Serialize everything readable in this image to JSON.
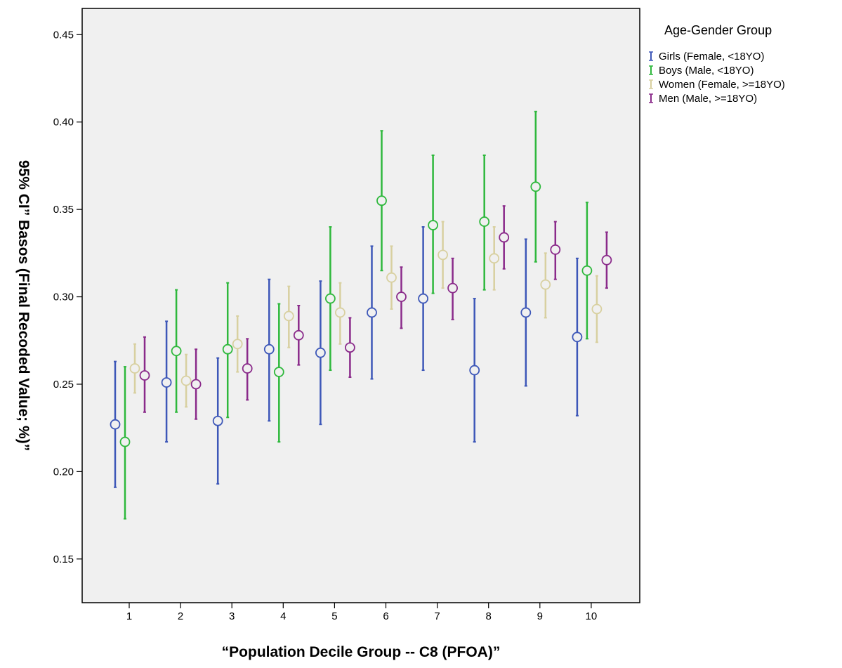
{
  "chart_data": {
    "type": "error-bar",
    "xlabel": "“Population Decile Group --  C8 (PFOA)”",
    "ylabel": "95% CI” Basos (Final Recoded Value; %)”",
    "ylim": [
      0.125,
      0.465
    ],
    "yticks": [
      "0.15",
      "0.20",
      "0.25",
      "0.30",
      "0.35",
      "0.40",
      "0.45"
    ],
    "ytick_values": [
      0.15,
      0.2,
      0.25,
      0.3,
      0.35,
      0.4,
      0.45
    ],
    "categories": [
      "1",
      "2",
      "3",
      "4",
      "5",
      "6",
      "7",
      "8",
      "9",
      "10"
    ],
    "legend": {
      "title": "Age-Gender Group",
      "position": "right"
    },
    "grid": false,
    "plot_background": "#f0f0f0",
    "series": [
      {
        "name": "Girls (Female, <18YO)",
        "color": "#3d57b8",
        "mean": [
          0.227,
          0.251,
          0.229,
          0.27,
          0.268,
          0.291,
          0.299,
          0.258,
          0.291,
          0.277
        ],
        "lower": [
          0.191,
          0.217,
          0.193,
          0.229,
          0.227,
          0.253,
          0.258,
          0.217,
          0.249,
          0.232
        ],
        "upper": [
          0.263,
          0.286,
          0.265,
          0.31,
          0.309,
          0.329,
          0.34,
          0.299,
          0.333,
          0.322
        ]
      },
      {
        "name": "Boys (Male, <18YO)",
        "color": "#2eb83c",
        "mean": [
          0.217,
          0.269,
          0.27,
          0.257,
          0.299,
          0.355,
          0.341,
          0.343,
          0.363,
          0.315
        ],
        "lower": [
          0.173,
          0.234,
          0.231,
          0.217,
          0.258,
          0.315,
          0.302,
          0.304,
          0.32,
          0.276
        ],
        "upper": [
          0.26,
          0.304,
          0.308,
          0.296,
          0.34,
          0.395,
          0.381,
          0.381,
          0.406,
          0.354
        ]
      },
      {
        "name": "Women (Female, >=18YO)",
        "color": "#d8d0a0",
        "mean": [
          0.259,
          0.252,
          0.273,
          0.289,
          0.291,
          0.311,
          0.324,
          0.322,
          0.307,
          0.293
        ],
        "lower": [
          0.245,
          0.237,
          0.257,
          0.271,
          0.273,
          0.293,
          0.305,
          0.304,
          0.288,
          0.274
        ],
        "upper": [
          0.273,
          0.267,
          0.289,
          0.306,
          0.308,
          0.329,
          0.343,
          0.34,
          0.325,
          0.312
        ]
      },
      {
        "name": "Men (Male, >=18YO)",
        "color": "#8a2a8a",
        "mean": [
          0.255,
          0.25,
          0.259,
          0.278,
          0.271,
          0.3,
          0.305,
          0.334,
          0.327,
          0.321
        ],
        "lower": [
          0.234,
          0.23,
          0.241,
          0.261,
          0.254,
          0.282,
          0.287,
          0.316,
          0.31,
          0.305
        ],
        "upper": [
          0.277,
          0.27,
          0.276,
          0.295,
          0.288,
          0.317,
          0.322,
          0.352,
          0.343,
          0.337
        ]
      }
    ]
  }
}
